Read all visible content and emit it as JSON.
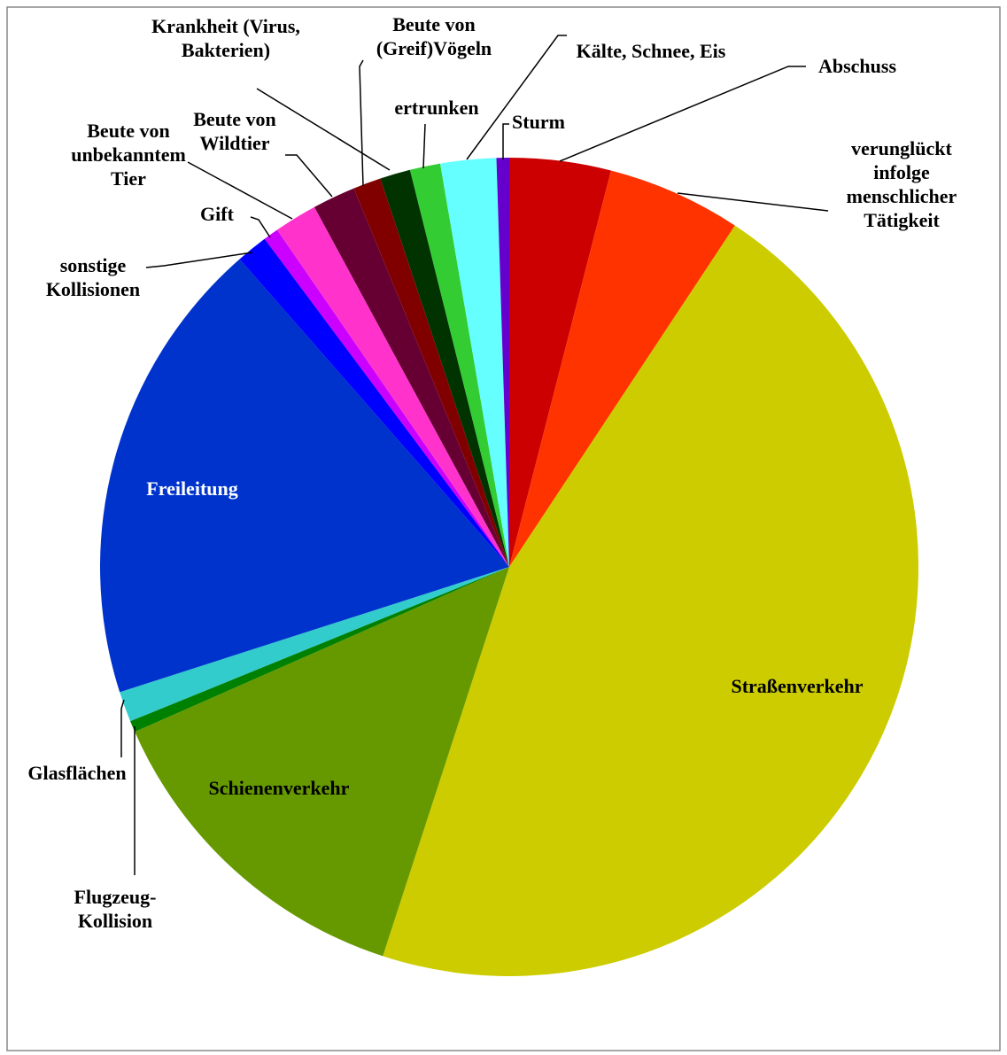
{
  "chart_data": {
    "type": "pie",
    "categories": [
      "Abschuss",
      "verunglückt infolge menschlicher Tätigkeit",
      "Straßenverkehr",
      "Schienenverkehr",
      "Flugzeug-Kollision",
      "Glasflächen",
      "Freileitung",
      "sonstige Kollisionen",
      "Gift",
      "Beute von unbekanntem Tier",
      "Beute von Wildtier",
      "Beute von (Greif)Vögeln",
      "Krankheit (Virus, Bakterien)",
      "ertrunken",
      "Kälte, Schnee, Eis",
      "Sturm"
    ],
    "values": [
      4.0,
      5.3,
      45.7,
      13.4,
      0.45,
      1.2,
      18.5,
      1.25,
      0.6,
      1.7,
      1.7,
      1.1,
      1.2,
      1.2,
      2.2,
      0.5
    ],
    "colors": [
      "#cc0000",
      "#ff3300",
      "#cccc00",
      "#669900",
      "#008000",
      "#33cccc",
      "#0033cc",
      "#0000ff",
      "#cc00ff",
      "#ff33cc",
      "#660033",
      "#800000",
      "#003300",
      "#33cc33",
      "#66ffff",
      "#6600cc"
    ]
  }
}
